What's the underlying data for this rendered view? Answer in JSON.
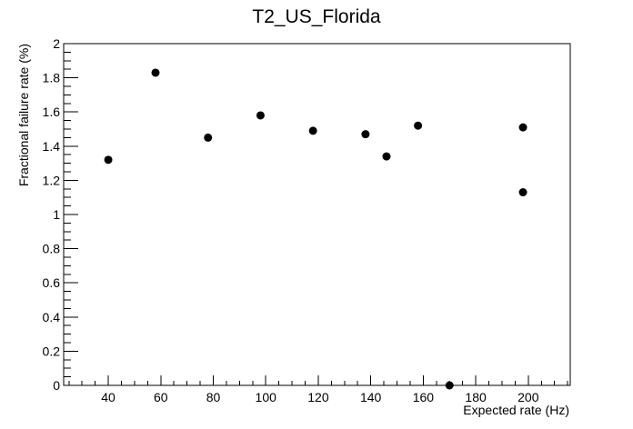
{
  "chart_data": {
    "type": "scatter",
    "title": "T2_US_Florida",
    "xlabel": "Expected rate (Hz)",
    "ylabel": "Fractional failure rate (%)",
    "xlim": [
      23,
      216
    ],
    "ylim": [
      0,
      2
    ],
    "x_ticks": [
      "40",
      "60",
      "80",
      "100",
      "120",
      "140",
      "160",
      "180",
      "200"
    ],
    "y_ticks": [
      "0",
      "0.2",
      "0.4",
      "0.6",
      "0.8",
      "1",
      "1.2",
      "1.4",
      "1.6",
      "1.8",
      "2"
    ],
    "grid": false,
    "legend": "none",
    "marker_color": "#000000",
    "points": [
      {
        "x": 40,
        "y": 1.32
      },
      {
        "x": 58,
        "y": 1.83
      },
      {
        "x": 78,
        "y": 1.45
      },
      {
        "x": 98,
        "y": 1.58
      },
      {
        "x": 118,
        "y": 1.49
      },
      {
        "x": 138,
        "y": 1.47
      },
      {
        "x": 146,
        "y": 1.34
      },
      {
        "x": 158,
        "y": 1.52
      },
      {
        "x": 170,
        "y": 0.0
      },
      {
        "x": 198,
        "y": 1.51
      },
      {
        "x": 198,
        "y": 1.13
      }
    ]
  }
}
